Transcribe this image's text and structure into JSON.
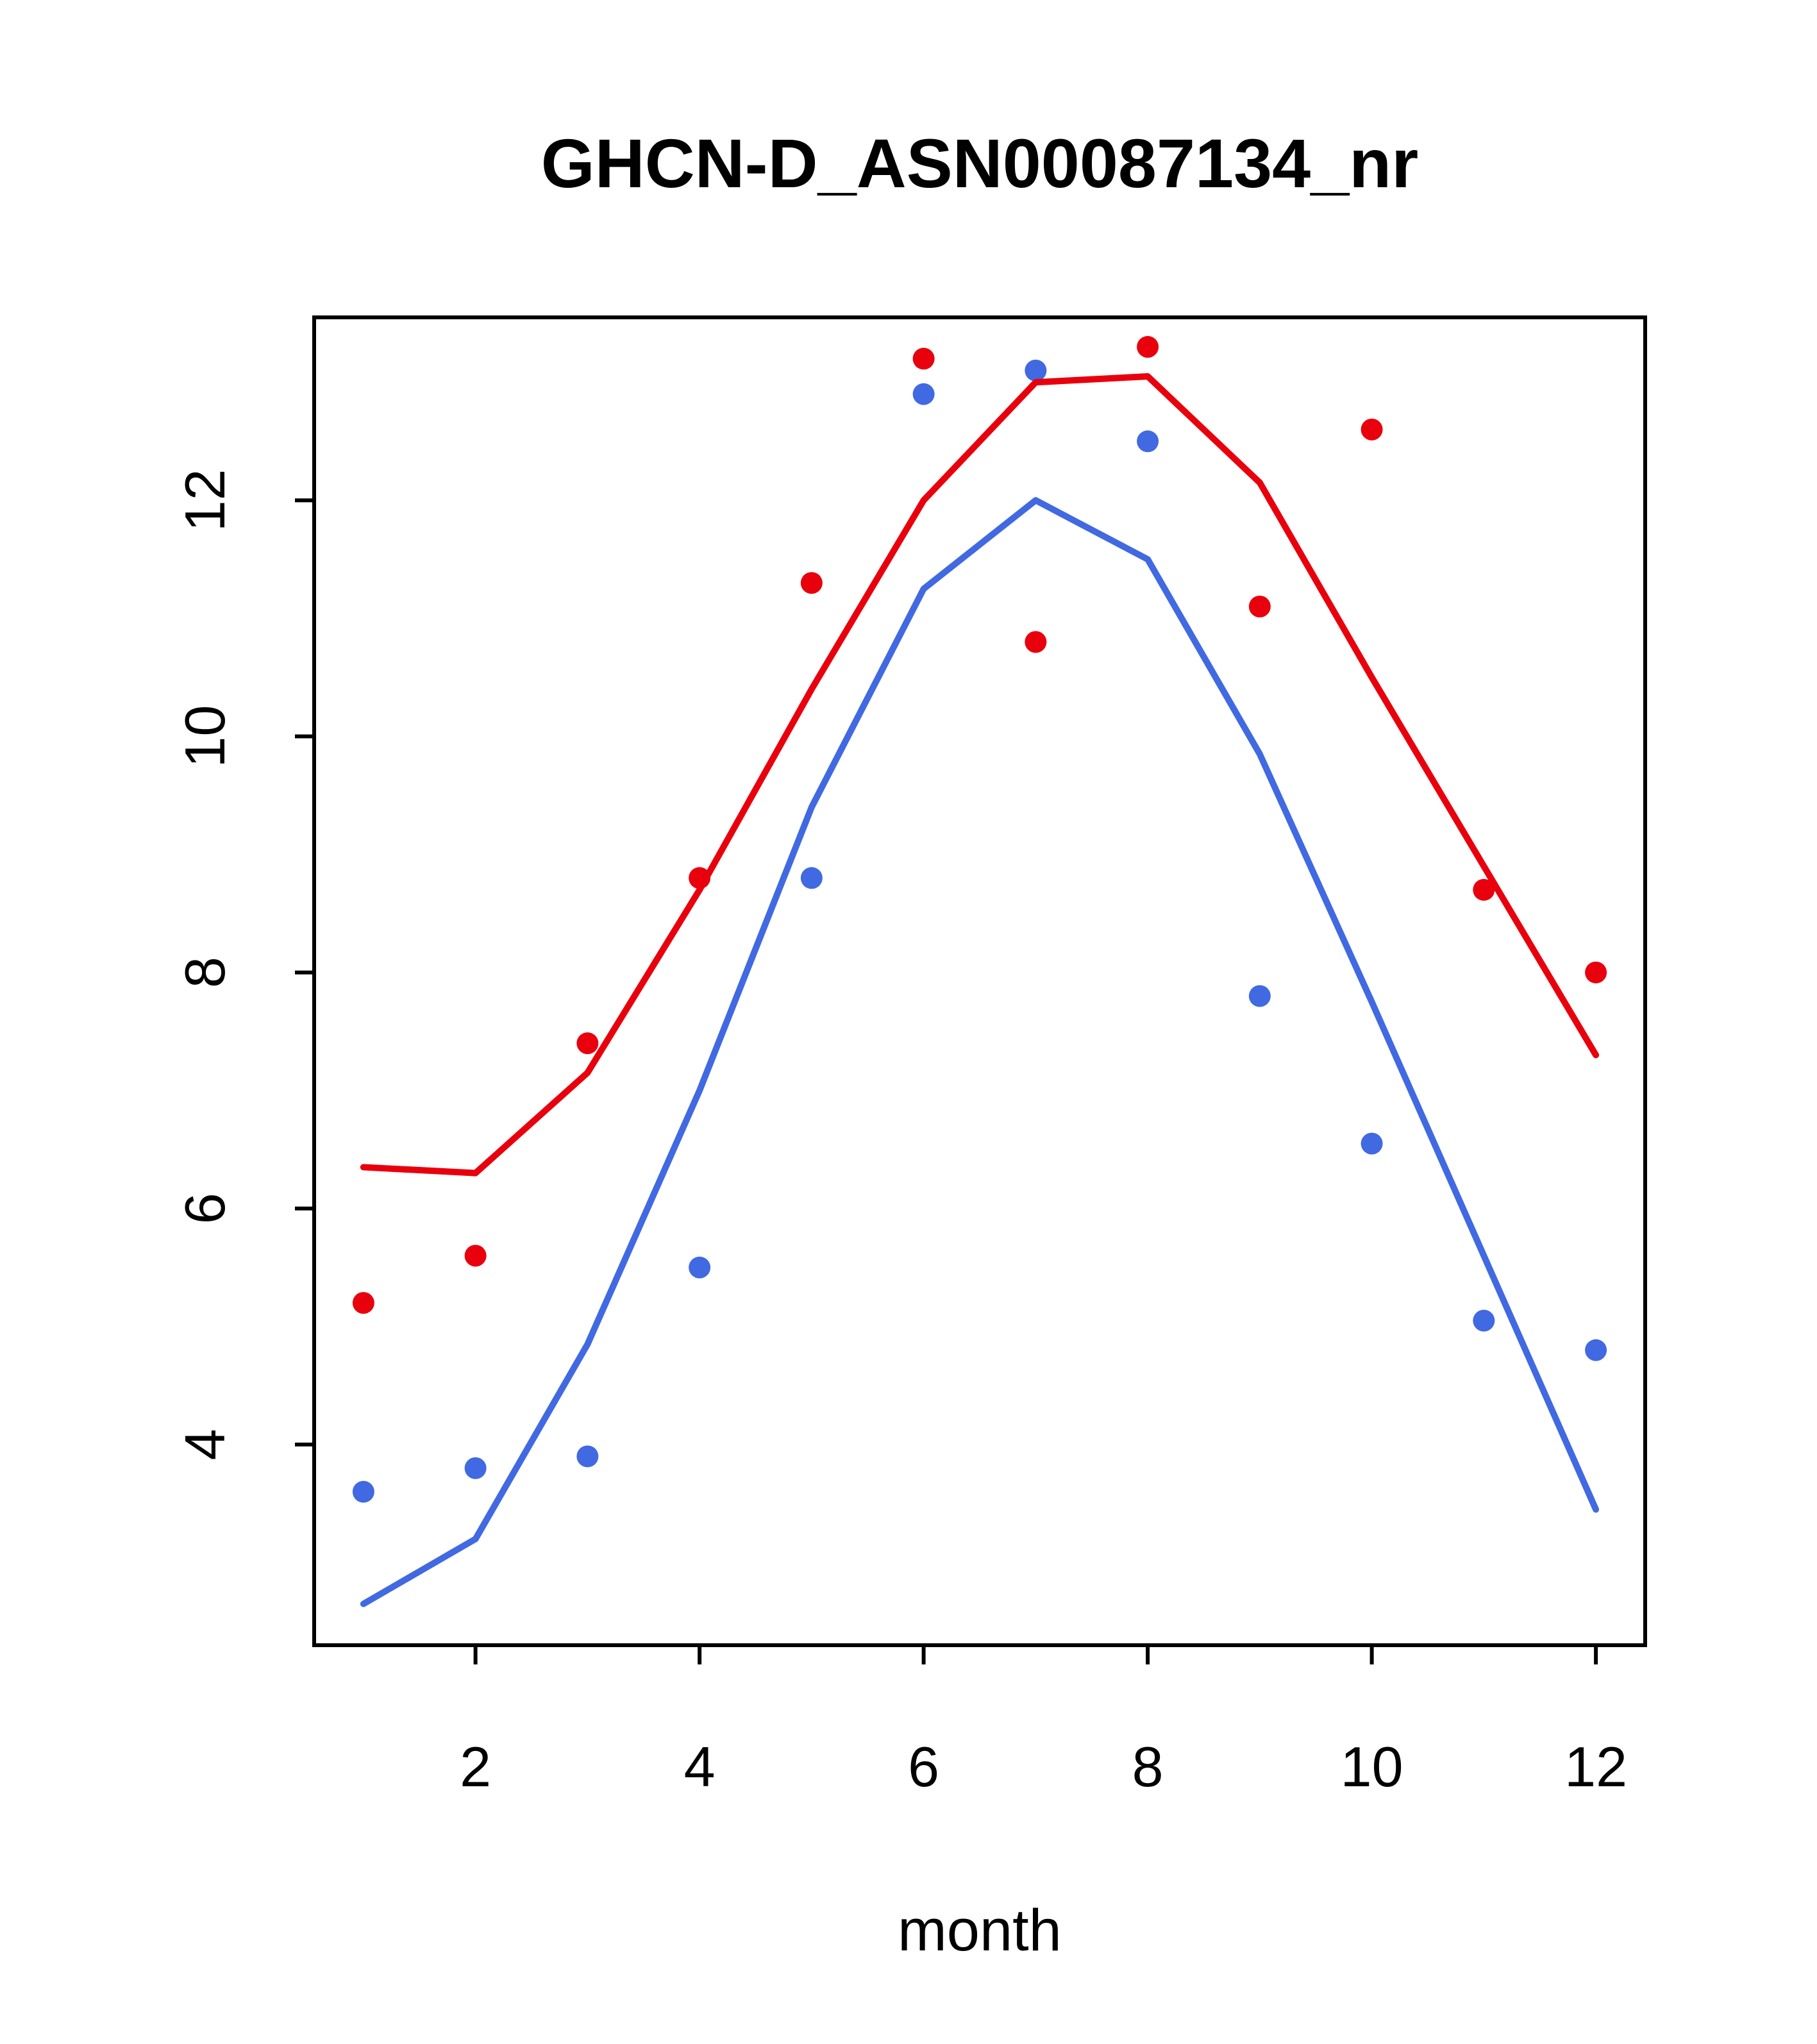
{
  "chart_data": {
    "type": "line",
    "title": "GHCN-D_ASN00087134_nr",
    "xlabel": "month",
    "ylabel": "",
    "x": [
      1,
      2,
      3,
      4,
      5,
      6,
      7,
      8,
      9,
      10,
      11,
      12
    ],
    "series": [
      {
        "name": "red-points",
        "style": "scatter",
        "color": "#e8000d",
        "values": [
          5.2,
          5.6,
          7.4,
          8.8,
          11.3,
          13.2,
          10.8,
          13.3,
          11.1,
          12.6,
          8.7,
          8.0
        ]
      },
      {
        "name": "blue-points",
        "style": "scatter",
        "color": "#4169e1",
        "values": [
          3.6,
          3.8,
          3.9,
          5.5,
          8.8,
          12.9,
          13.1,
          12.5,
          7.8,
          6.55,
          5.05,
          4.8
        ]
      },
      {
        "name": "red-line",
        "style": "line",
        "color": "#e8000d",
        "values": [
          6.35,
          6.3,
          7.15,
          8.7,
          10.4,
          12.0,
          13.0,
          13.05,
          12.15,
          10.5,
          8.9,
          7.3
        ]
      },
      {
        "name": "blue-line",
        "style": "line",
        "color": "#4169e1",
        "values": [
          2.65,
          3.2,
          4.85,
          7.0,
          9.4,
          11.25,
          12.0,
          11.5,
          9.85,
          7.75,
          5.6,
          3.45
        ]
      }
    ],
    "xticks": [
      2,
      4,
      6,
      8,
      10,
      12
    ],
    "yticks": [
      4,
      6,
      8,
      10,
      12
    ],
    "xlim": [
      0.56,
      12.44
    ],
    "ylim": [
      2.3,
      13.55
    ],
    "grid": false,
    "legend": null,
    "colors": {
      "red_series": "#e8000d",
      "blue_series": "#4169e1",
      "axis": "#000000",
      "background": "#ffffff"
    }
  }
}
